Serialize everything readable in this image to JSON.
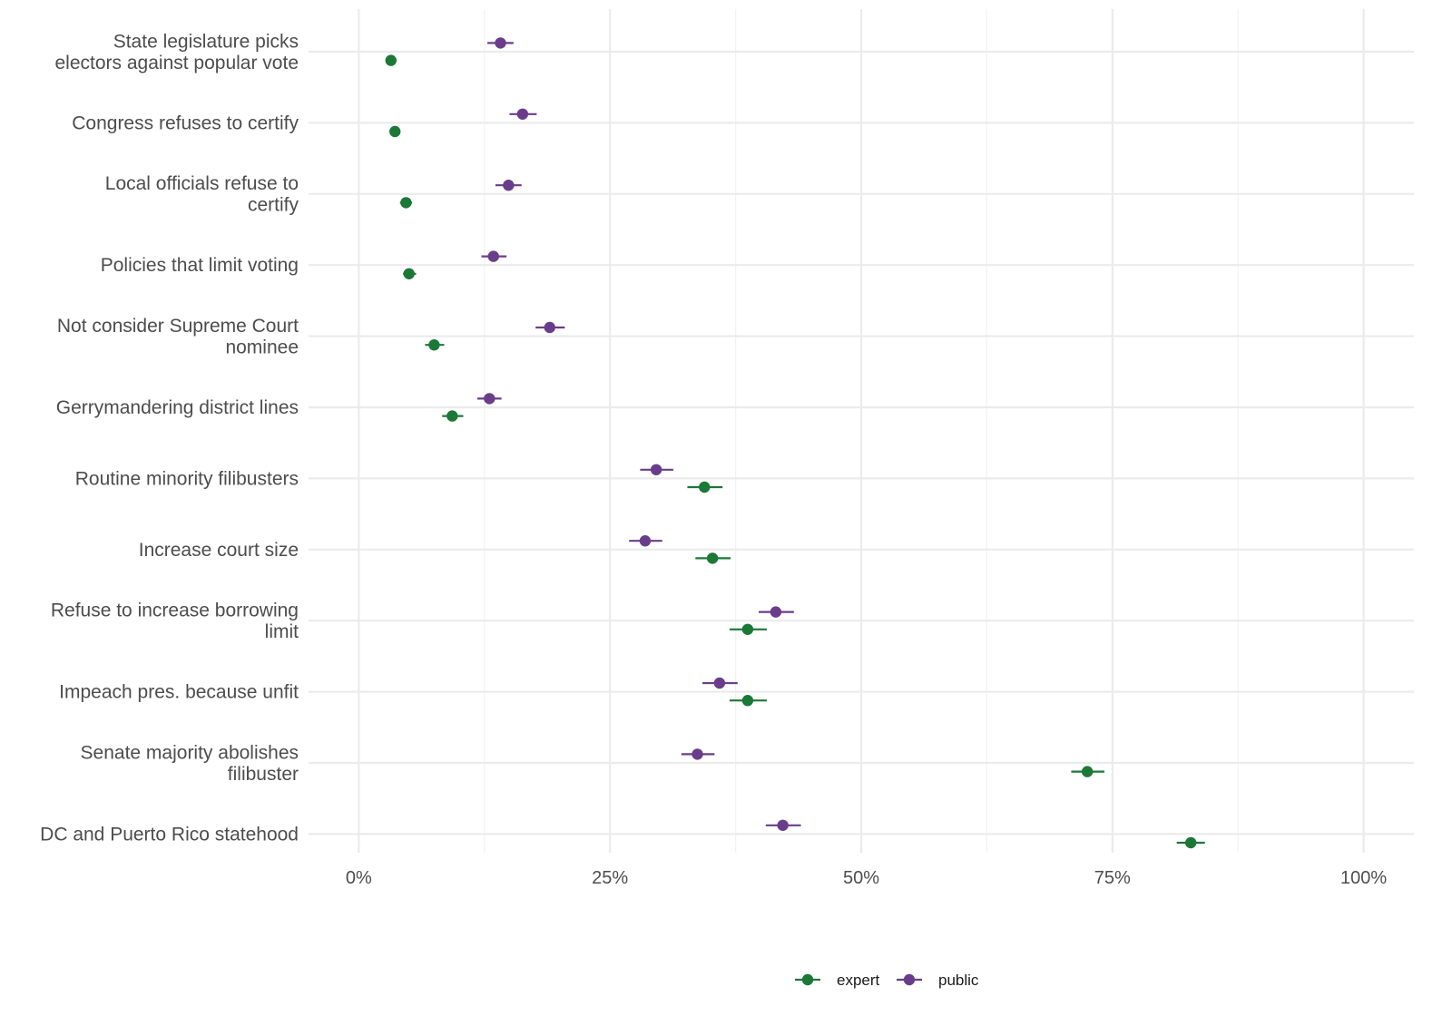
{
  "chart_data": {
    "type": "scatter",
    "orientation": "horizontal",
    "error_bars": true,
    "categories": [
      "State legislature picks\nelectors against popular vote",
      "Congress refuses to certify",
      "Local officials refuse to\ncertify",
      "Policies that limit voting",
      "Not consider Supreme Court\nnominee",
      "Gerrymandering district lines",
      "Routine minority filibusters",
      "Increase court size",
      "Refuse to increase borrowing\nlimit",
      "Impeach pres. because unfit",
      "Senate majority abolishes\nfilibuster",
      "DC and Puerto Rico statehood"
    ],
    "series": [
      {
        "name": "expert",
        "color": "#1b7837",
        "values": [
          0.032,
          0.036,
          0.047,
          0.05,
          0.075,
          0.093,
          0.344,
          0.352,
          0.387,
          0.387,
          0.725,
          0.828
        ],
        "lower": [
          0.028,
          0.031,
          0.041,
          0.044,
          0.066,
          0.083,
          0.327,
          0.335,
          0.369,
          0.369,
          0.709,
          0.814
        ],
        "upper": [
          0.036,
          0.041,
          0.053,
          0.057,
          0.085,
          0.104,
          0.362,
          0.37,
          0.406,
          0.406,
          0.742,
          0.842
        ]
      },
      {
        "name": "public",
        "color": "#6a3d8a",
        "values": [
          0.141,
          0.163,
          0.149,
          0.134,
          0.19,
          0.13,
          0.296,
          0.285,
          0.415,
          0.359,
          0.337,
          0.422
        ],
        "lower": [
          0.128,
          0.15,
          0.136,
          0.122,
          0.176,
          0.118,
          0.28,
          0.269,
          0.398,
          0.342,
          0.321,
          0.405
        ],
        "upper": [
          0.154,
          0.177,
          0.162,
          0.147,
          0.205,
          0.142,
          0.313,
          0.302,
          0.433,
          0.377,
          0.354,
          0.44
        ]
      }
    ],
    "xlim": [
      -0.05,
      1.05
    ],
    "x_ticks": [
      0,
      0.25,
      0.5,
      0.75,
      1.0
    ],
    "x_tick_labels": [
      "0%",
      "25%",
      "50%",
      "75%",
      "100%"
    ],
    "title": "",
    "xlabel": "",
    "ylabel": "",
    "grid": true,
    "legend_position": "bottom"
  }
}
